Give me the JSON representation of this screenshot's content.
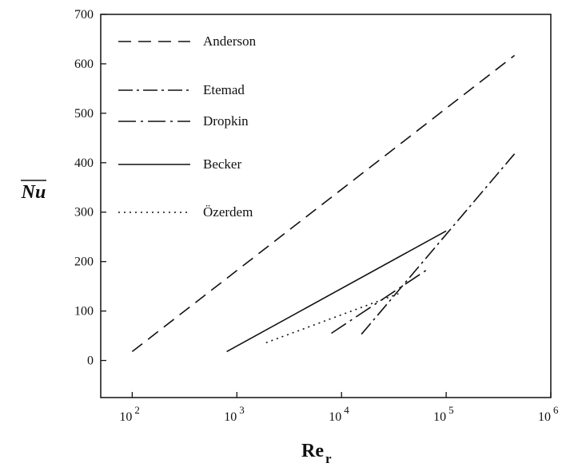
{
  "chart_data": {
    "type": "line",
    "xlabel": "Re",
    "xlabel_subscript": "r",
    "ylabel": "Nu",
    "xscale": "log",
    "xlim": [
      50,
      1000000
    ],
    "ylim": [
      -75,
      700
    ],
    "x_ticks": [
      {
        "value": 100,
        "base": "10",
        "exp": "2"
      },
      {
        "value": 1000,
        "base": "10",
        "exp": "3"
      },
      {
        "value": 10000,
        "base": "10",
        "exp": "4"
      },
      {
        "value": 100000,
        "base": "10",
        "exp": "5"
      },
      {
        "value": 1000000,
        "base": "10",
        "exp": "6"
      }
    ],
    "y_ticks": [
      "0",
      "100",
      "200",
      "300",
      "400",
      "500",
      "600",
      "700"
    ],
    "legend_position": "top-left",
    "grid": false,
    "series": [
      {
        "name": "Anderson",
        "dash": "16,9",
        "x": [
          100,
          450000
        ],
        "y": [
          18,
          617
        ]
      },
      {
        "name": "Etemad",
        "dash": "18,5,3,5",
        "x": [
          15500,
          450000
        ],
        "y": [
          53,
          418
        ]
      },
      {
        "name": "Dropkin",
        "dash": "22,6,3,6",
        "x": [
          8000,
          65000
        ],
        "y": [
          55,
          183
        ]
      },
      {
        "name": "Becker",
        "dash": "",
        "x": [
          800,
          100000
        ],
        "y": [
          18,
          262
        ]
      },
      {
        "name": "Özerdem",
        "dash": "2,5",
        "x": [
          1900,
          35000
        ],
        "y": [
          36,
          135
        ]
      }
    ]
  }
}
